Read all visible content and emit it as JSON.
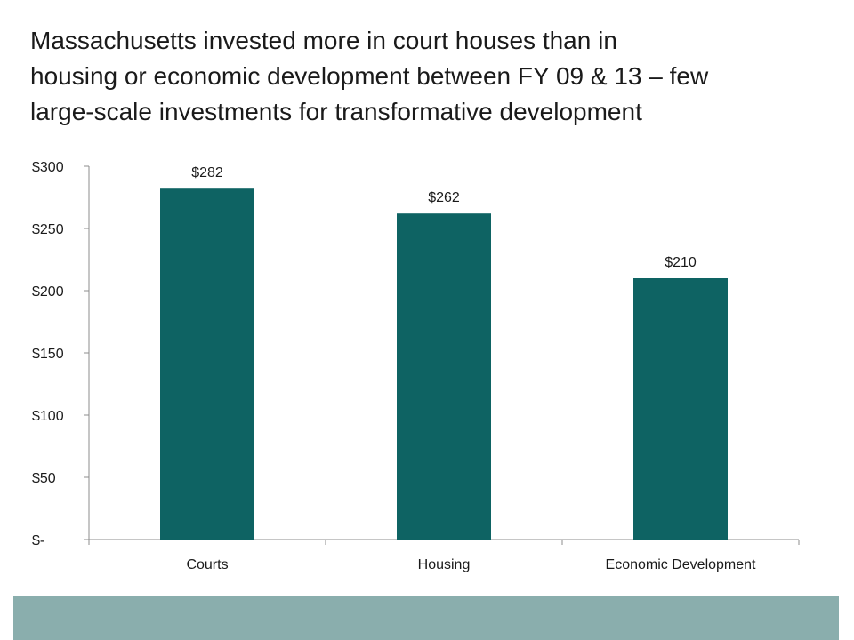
{
  "slide": {
    "title_lines": [
      "Massachusetts invested more in court houses than in",
      "housing or economic development between FY 09 & 13 – few",
      "large-scale investments for transformative development"
    ]
  },
  "chart_data": {
    "type": "bar",
    "categories": [
      "Courts",
      "Housing",
      "Economic Development"
    ],
    "values": [
      282,
      262,
      210
    ],
    "data_labels": [
      "$282",
      "$262",
      "$210"
    ],
    "ylim": [
      0,
      300
    ],
    "yticks": [
      0,
      50,
      100,
      150,
      200,
      250,
      300
    ],
    "ytick_labels": [
      "$-",
      "$50",
      "$100",
      "$150",
      "$200",
      "$250",
      "$300"
    ],
    "grid": false,
    "legend": "none",
    "xlabel": "",
    "ylabel": "",
    "bar_color": "#0e6363",
    "axis_color": "#8c8c8c"
  }
}
